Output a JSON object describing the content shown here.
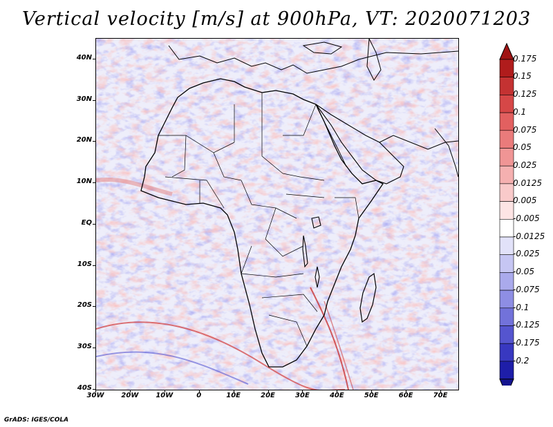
{
  "title": "Vertical velocity [m/s] at 900hPa, VT: 2020071203",
  "map": {
    "projection": "lat-lon",
    "extent": {
      "lon_min": -30,
      "lon_max": 75,
      "lat_min": -40,
      "lat_max": 45
    },
    "lat_ticks": [
      {
        "value": 40,
        "label": "40N"
      },
      {
        "value": 30,
        "label": "30N"
      },
      {
        "value": 20,
        "label": "20N"
      },
      {
        "value": 10,
        "label": "10N"
      },
      {
        "value": 0,
        "label": "EQ"
      },
      {
        "value": -10,
        "label": "10S"
      },
      {
        "value": -20,
        "label": "20S"
      },
      {
        "value": -30,
        "label": "30S"
      },
      {
        "value": -40,
        "label": "40S"
      }
    ],
    "lon_ticks": [
      {
        "value": -30,
        "label": "30W"
      },
      {
        "value": -20,
        "label": "20W"
      },
      {
        "value": -10,
        "label": "10W"
      },
      {
        "value": 0,
        "label": "0"
      },
      {
        "value": 10,
        "label": "10E"
      },
      {
        "value": 20,
        "label": "20E"
      },
      {
        "value": 30,
        "label": "30E"
      },
      {
        "value": 40,
        "label": "40E"
      },
      {
        "value": 50,
        "label": "50E"
      },
      {
        "value": 60,
        "label": "60E"
      },
      {
        "value": 70,
        "label": "70E"
      }
    ]
  },
  "colorbar": {
    "levels": [
      {
        "label": "0.175",
        "color": "#b01c1c"
      },
      {
        "label": "0.15",
        "color": "#c43232"
      },
      {
        "label": "0.125",
        "color": "#d64747"
      },
      {
        "label": "0.1",
        "color": "#e26060"
      },
      {
        "label": "0.075",
        "color": "#ea7b7b"
      },
      {
        "label": "0.05",
        "color": "#f09595"
      },
      {
        "label": "0.025",
        "color": "#f5b0b0"
      },
      {
        "label": "0.0125",
        "color": "#f9caca"
      },
      {
        "label": "0.005",
        "color": "#fde4e4"
      },
      {
        "label": "-0.005",
        "color": "#ffffff"
      },
      {
        "label": "-0.0125",
        "color": "#e2e2f9"
      },
      {
        "label": "-0.025",
        "color": "#c6c6f3"
      },
      {
        "label": "-0.05",
        "color": "#aaaaec"
      },
      {
        "label": "-0.075",
        "color": "#8e8ee4"
      },
      {
        "label": "-0.1",
        "color": "#7272da"
      },
      {
        "label": "-0.125",
        "color": "#5555cf"
      },
      {
        "label": "-0.175",
        "color": "#3838c0"
      },
      {
        "label": "-0.2",
        "color": "#1e1ea8"
      }
    ],
    "top_arrow_color": "#a01414",
    "bottom_arrow_color": "#14148f"
  },
  "credit": "GrADS: IGES/COLA"
}
